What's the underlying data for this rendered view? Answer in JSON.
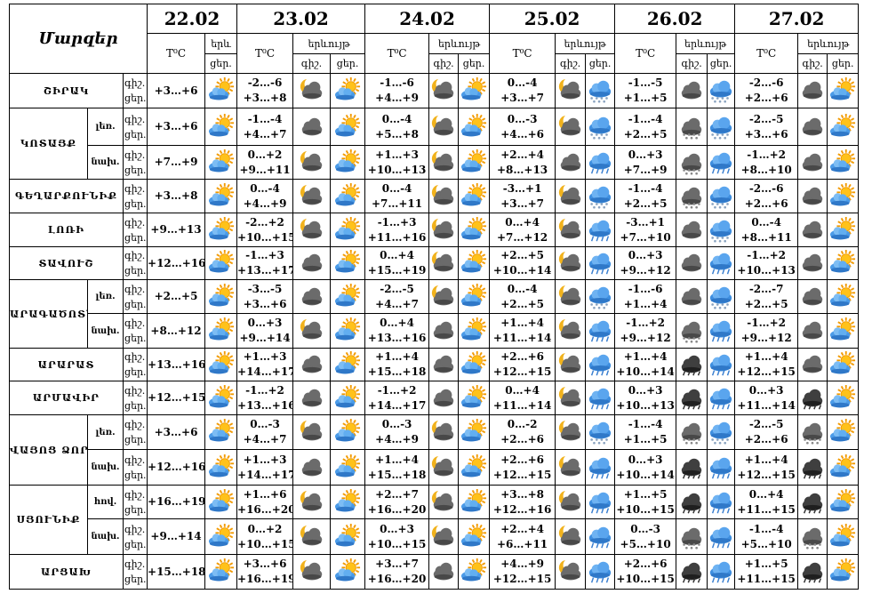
{
  "header": {
    "title": "Մարզեր",
    "temp_label": "T⁰C",
    "phenomenon_label": "երևույթ",
    "phenomenon_label_short": "երև",
    "night_label": "գիշ.",
    "day_label": "ցեր.",
    "dates": [
      "22.02",
      "23.02",
      "24.02",
      "25.02",
      "26.02",
      "27.02"
    ]
  },
  "rows": [
    {
      "region": "ՇԻՐԱԿ",
      "sub": "",
      "cells": [
        {
          "n": "",
          "d": "+3…+6",
          "i": [
            "sun-cloud"
          ]
        },
        {
          "n": "-2…-6",
          "d": "+3…+8",
          "i": [
            "moon-cloud",
            "sun-cloud"
          ]
        },
        {
          "n": "-1…-6",
          "d": "+4…+9",
          "i": [
            "moon-cloud",
            "sun-cloud"
          ]
        },
        {
          "n": "0…-4",
          "d": "+3…+7",
          "i": [
            "moon-cloud",
            "snow"
          ]
        },
        {
          "n": "-1…-5",
          "d": "+1…+5",
          "i": [
            "cloud",
            "snow"
          ]
        },
        {
          "n": "-2…-6",
          "d": "+2…+6",
          "i": [
            "cloud",
            "sun-cloud"
          ]
        }
      ]
    },
    {
      "region": "ԿՈՏԱՅՔ",
      "sub": "լեռ.",
      "cells": [
        {
          "n": "",
          "d": "+3…+6",
          "i": [
            "sun-cloud"
          ]
        },
        {
          "n": "-1…-4",
          "d": "+4…+7",
          "i": [
            "cloud",
            "sun-cloud"
          ]
        },
        {
          "n": "0…-4",
          "d": "+5…+8",
          "i": [
            "moon-cloud",
            "sun-cloud"
          ]
        },
        {
          "n": "0…-3",
          "d": "+4…+6",
          "i": [
            "moon-cloud",
            "snow"
          ]
        },
        {
          "n": "-1…-4",
          "d": "+2…+5",
          "i": [
            "snow-dark",
            "snow"
          ]
        },
        {
          "n": "-2…-5",
          "d": "+3…+6",
          "i": [
            "cloud",
            "sun-cloud"
          ]
        }
      ]
    },
    {
      "region": "",
      "sub": "նախ.",
      "cells": [
        {
          "n": "",
          "d": "+7…+9",
          "i": [
            "sun-cloud"
          ]
        },
        {
          "n": "0…+2",
          "d": "+9…+11",
          "i": [
            "moon-cloud",
            "sun-cloud"
          ]
        },
        {
          "n": "+1…+3",
          "d": "+10…+13",
          "i": [
            "moon-cloud",
            "sun-cloud"
          ]
        },
        {
          "n": "+2…+4",
          "d": "+8…+13",
          "i": [
            "cloud",
            "rain"
          ]
        },
        {
          "n": "0…+3",
          "d": "+7…+9",
          "i": [
            "snow-dark",
            "rain"
          ]
        },
        {
          "n": "-1…+2",
          "d": "+8…+10",
          "i": [
            "cloud",
            "sun-cloud"
          ]
        }
      ]
    },
    {
      "region": "ԳԵՂԱՐՔՈՒՆԻՔ",
      "sub": "",
      "cells": [
        {
          "n": "",
          "d": "+3…+8",
          "i": [
            "sun-cloud"
          ]
        },
        {
          "n": "0…-4",
          "d": "+4…+9",
          "i": [
            "moon-cloud",
            "sun-cloud"
          ]
        },
        {
          "n": "0…-4",
          "d": "+7…+11",
          "i": [
            "moon-cloud",
            "sun-cloud"
          ]
        },
        {
          "n": "-3…+1",
          "d": "+3…+7",
          "i": [
            "moon-cloud",
            "snow"
          ]
        },
        {
          "n": "-1…-4",
          "d": "+2…+5",
          "i": [
            "snow-dark",
            "snow"
          ]
        },
        {
          "n": "-2…-6",
          "d": "+2…+6",
          "i": [
            "cloud",
            "sun-cloud"
          ]
        }
      ]
    },
    {
      "region": "ԼՈՌԻ",
      "sub": "",
      "cells": [
        {
          "n": "",
          "d": "+9…+13",
          "i": [
            "sun-cloud"
          ]
        },
        {
          "n": "-2…+2",
          "d": "+10…+15",
          "i": [
            "moon-cloud",
            "sun-cloud"
          ]
        },
        {
          "n": "-1…+3",
          "d": "+11…+16",
          "i": [
            "moon-cloud",
            "sun-cloud"
          ]
        },
        {
          "n": "0…+4",
          "d": "+7…+12",
          "i": [
            "moon-cloud",
            "rain"
          ]
        },
        {
          "n": "-3…+1",
          "d": "+7…+10",
          "i": [
            "cloud",
            "snow"
          ]
        },
        {
          "n": "0…-4",
          "d": "+8…+11",
          "i": [
            "cloud",
            "sun-cloud"
          ]
        }
      ]
    },
    {
      "region": "ՏԱՎՈՒՇ",
      "sub": "",
      "cells": [
        {
          "n": "",
          "d": "+12…+16",
          "i": [
            "sun-cloud"
          ]
        },
        {
          "n": "-1…+3",
          "d": "+13…+17",
          "i": [
            "cloud",
            "sun-cloud"
          ]
        },
        {
          "n": "0…+4",
          "d": "+15…+19",
          "i": [
            "moon-cloud",
            "sun-cloud"
          ]
        },
        {
          "n": "+2…+5",
          "d": "+10…+14",
          "i": [
            "moon-cloud",
            "rain"
          ]
        },
        {
          "n": "0…+3",
          "d": "+9…+12",
          "i": [
            "cloud",
            "rain"
          ]
        },
        {
          "n": "-1…+2",
          "d": "+10…+13",
          "i": [
            "cloud",
            "sun-cloud"
          ]
        }
      ]
    },
    {
      "region": "ԱՐԱԳԱԾՈՏՆ",
      "sub": "լեռ.",
      "cells": [
        {
          "n": "",
          "d": "+2…+5",
          "i": [
            "sun-cloud"
          ]
        },
        {
          "n": "-3…-5",
          "d": "+3…+6",
          "i": [
            "cloud",
            "sun-cloud"
          ]
        },
        {
          "n": "-2…-5",
          "d": "+4…+7",
          "i": [
            "moon-cloud",
            "sun-cloud"
          ]
        },
        {
          "n": "0…-4",
          "d": "+2…+5",
          "i": [
            "moon-cloud",
            "snow"
          ]
        },
        {
          "n": "-1…-6",
          "d": "+1…+4",
          "i": [
            "cloud",
            "snow"
          ]
        },
        {
          "n": "-2…-7",
          "d": "+2…+5",
          "i": [
            "cloud",
            "sun-cloud"
          ]
        }
      ]
    },
    {
      "region": "",
      "sub": "նախ.",
      "cells": [
        {
          "n": "",
          "d": "+8…+12",
          "i": [
            "sun-cloud"
          ]
        },
        {
          "n": "0…+3",
          "d": "+9…+14",
          "i": [
            "moon-cloud",
            "sun-cloud"
          ]
        },
        {
          "n": "0…+4",
          "d": "+13…+16",
          "i": [
            "cloud",
            "sun-cloud"
          ]
        },
        {
          "n": "+1…+4",
          "d": "+11…+14",
          "i": [
            "moon-cloud",
            "rain"
          ]
        },
        {
          "n": "-1…+2",
          "d": "+9…+12",
          "i": [
            "snow-dark",
            "rain"
          ]
        },
        {
          "n": "-1…+2",
          "d": "+9…+12",
          "i": [
            "cloud",
            "sun-cloud"
          ]
        }
      ]
    },
    {
      "region": "ԱՐԱՐԱՏ",
      "sub": "",
      "cells": [
        {
          "n": "",
          "d": "+13…+16",
          "i": [
            "sun-cloud"
          ]
        },
        {
          "n": "+1…+3",
          "d": "+14…+17",
          "i": [
            "cloud",
            "sun-cloud"
          ]
        },
        {
          "n": "+1…+4",
          "d": "+15…+18",
          "i": [
            "cloud",
            "sun-cloud"
          ]
        },
        {
          "n": "+2…+6",
          "d": "+12…+15",
          "i": [
            "moon-cloud",
            "rain"
          ]
        },
        {
          "n": "+1…+4",
          "d": "+10…+14",
          "i": [
            "rain-dark",
            "rain"
          ]
        },
        {
          "n": "+1…+4",
          "d": "+12…+15",
          "i": [
            "cloud",
            "sun-cloud"
          ]
        }
      ]
    },
    {
      "region": "ԱՐՄԱՎԻՐ",
      "sub": "",
      "cells": [
        {
          "n": "",
          "d": "+12…+15",
          "i": [
            "sun-cloud"
          ]
        },
        {
          "n": "-1…+2",
          "d": "+13…+16",
          "i": [
            "cloud",
            "sun-cloud"
          ]
        },
        {
          "n": "-1…+2",
          "d": "+14…+17",
          "i": [
            "cloud",
            "sun-cloud"
          ]
        },
        {
          "n": "0…+4",
          "d": "+11…+14",
          "i": [
            "moon-cloud",
            "rain"
          ]
        },
        {
          "n": "0…+3",
          "d": "+10…+13",
          "i": [
            "rain-dark",
            "rain"
          ]
        },
        {
          "n": "0…+3",
          "d": "+11…+14",
          "i": [
            "rain-dark",
            "sun-cloud"
          ]
        }
      ]
    },
    {
      "region": "ՎԱՅՈՑ ՁՈՐ",
      "sub": "լեռ.",
      "cells": [
        {
          "n": "",
          "d": "+3…+6",
          "i": [
            "sun-cloud"
          ]
        },
        {
          "n": "0…-3",
          "d": "+4…+7",
          "i": [
            "moon-cloud",
            "sun-cloud"
          ]
        },
        {
          "n": "0…-3",
          "d": "+4…+9",
          "i": [
            "moon-cloud",
            "sun-cloud"
          ]
        },
        {
          "n": "0…-2",
          "d": "+2…+6",
          "i": [
            "moon-cloud",
            "snow"
          ]
        },
        {
          "n": "-1…-4",
          "d": "+1…+5",
          "i": [
            "snow-dark",
            "snow"
          ]
        },
        {
          "n": "-2…-5",
          "d": "+2…+6",
          "i": [
            "snow-dark",
            "sun-cloud"
          ]
        }
      ]
    },
    {
      "region": "",
      "sub": "նախ.",
      "cells": [
        {
          "n": "",
          "d": "+12…+16",
          "i": [
            "sun-cloud"
          ]
        },
        {
          "n": "+1…+3",
          "d": "+14…+17",
          "i": [
            "cloud",
            "sun-cloud"
          ]
        },
        {
          "n": "+1…+4",
          "d": "+15…+18",
          "i": [
            "moon-cloud",
            "sun-cloud"
          ]
        },
        {
          "n": "+2…+6",
          "d": "+12…+15",
          "i": [
            "moon-cloud",
            "rain"
          ]
        },
        {
          "n": "0…+3",
          "d": "+10…+14",
          "i": [
            "rain-dark",
            "rain"
          ]
        },
        {
          "n": "+1…+4",
          "d": "+12…+15",
          "i": [
            "rain-dark",
            "sun-cloud"
          ]
        }
      ]
    },
    {
      "region": "ՍՅՈՒՆԻՔ",
      "sub": "հով.",
      "cells": [
        {
          "n": "",
          "d": "+16…+19",
          "i": [
            "sun-cloud"
          ]
        },
        {
          "n": "+1…+6",
          "d": "+16…+20",
          "i": [
            "moon-cloud",
            "sun-cloud"
          ]
        },
        {
          "n": "+2…+7",
          "d": "+16…+20",
          "i": [
            "moon-cloud",
            "sun-cloud"
          ]
        },
        {
          "n": "+3…+8",
          "d": "+12…+16",
          "i": [
            "moon-cloud",
            "rain"
          ]
        },
        {
          "n": "+1…+5",
          "d": "+10…+15",
          "i": [
            "rain-dark",
            "rain"
          ]
        },
        {
          "n": "0…+4",
          "d": "+11…+15",
          "i": [
            "rain-dark",
            "sun-cloud"
          ]
        }
      ]
    },
    {
      "region": "",
      "sub": "նախ.",
      "cells": [
        {
          "n": "",
          "d": "+9…+14",
          "i": [
            "sun-cloud"
          ]
        },
        {
          "n": "0…+2",
          "d": "+10…+15",
          "i": [
            "moon-cloud",
            "sun-cloud"
          ]
        },
        {
          "n": "0…+3",
          "d": "+10…+15",
          "i": [
            "moon-cloud",
            "sun-cloud"
          ]
        },
        {
          "n": "+2…+4",
          "d": "+6…+11",
          "i": [
            "moon-cloud",
            "rain"
          ]
        },
        {
          "n": "0…-3",
          "d": "+5…+10",
          "i": [
            "snow-dark",
            "rain"
          ]
        },
        {
          "n": "-1…-4",
          "d": "+5…+10",
          "i": [
            "snow-dark",
            "sun-cloud"
          ]
        }
      ]
    },
    {
      "region": "ԱՐՑԱԽ",
      "sub": "",
      "cells": [
        {
          "n": "",
          "d": "+15…+18",
          "i": [
            "sun-cloud"
          ]
        },
        {
          "n": "+3…+6",
          "d": "+16…+19",
          "i": [
            "moon-cloud",
            "sun-cloud"
          ]
        },
        {
          "n": "+3…+7",
          "d": "+16…+20",
          "i": [
            "cloud",
            "sun-cloud"
          ]
        },
        {
          "n": "+4…+9",
          "d": "+12…+15",
          "i": [
            "moon-cloud",
            "rain"
          ]
        },
        {
          "n": "+2…+6",
          "d": "+10…+15",
          "i": [
            "rain-dark",
            "rain"
          ]
        },
        {
          "n": "+1…+5",
          "d": "+11…+15",
          "i": [
            "rain-dark",
            "sun-cloud"
          ]
        }
      ]
    }
  ]
}
